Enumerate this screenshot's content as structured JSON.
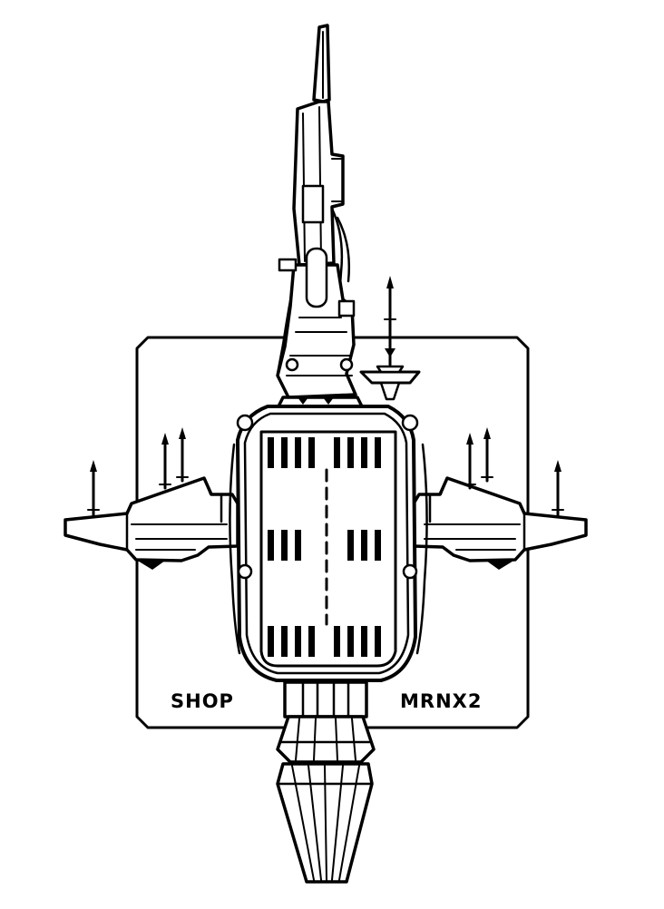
{
  "labels": {
    "left": "SHOP",
    "right": "MRNX2"
  },
  "colors": {
    "ink": "#000000",
    "paper": "#ffffff"
  }
}
